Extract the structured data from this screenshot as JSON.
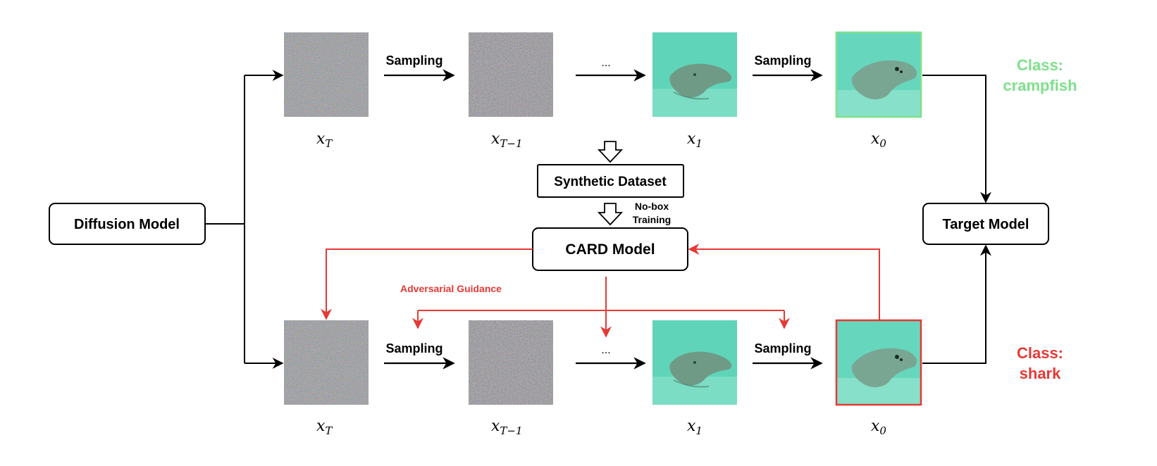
{
  "boxes": {
    "diffusion_model": "Diffusion Model",
    "synthetic_dataset": "Synthetic Dataset",
    "card_model": "CARD Model",
    "target_model": "Target Model"
  },
  "edge_labels": {
    "sampling": "Sampling",
    "ellipsis": "...",
    "no_box_line1": "No-box",
    "no_box_line2": "Training",
    "adversarial_guidance": "Adversarial Guidance"
  },
  "variables": {
    "x_T_base": "x",
    "x_T_sub": "T",
    "x_T1_base": "x",
    "x_T1_sub": "T−1",
    "x_1_base": "x",
    "x_1_sub": "1",
    "x_0_base": "x",
    "x_0_sub": "0"
  },
  "classes": {
    "top_line1": "Class:",
    "top_line2": "crampfish",
    "bottom_line1": "Class:",
    "bottom_line2": "shark"
  },
  "colors": {
    "black": "#000000",
    "adversarial_red": "#e53935",
    "benign_green": "#7ee08a",
    "noise_base": "#8f8a9a",
    "water": "#5fd4b8",
    "ray": "#6f9a86"
  },
  "images": {
    "noise": "noise-image",
    "denoised": "stingray-image"
  }
}
